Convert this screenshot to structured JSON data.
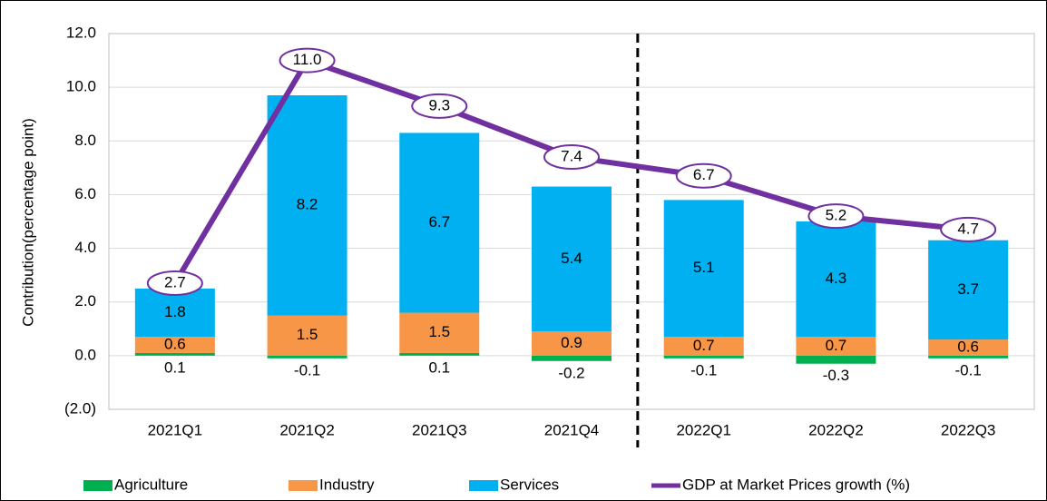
{
  "chart_data": {
    "type": "bar",
    "y_label": "Contribution(percentage  point)",
    "categories": [
      "2021Q1",
      "2021Q2",
      "2021Q3",
      "2021Q4",
      "2022Q1",
      "2022Q2",
      "2022Q3"
    ],
    "series": [
      {
        "name": "Agriculture",
        "type": "bar",
        "color": "#00b050",
        "values": [
          0.1,
          -0.1,
          0.1,
          -0.2,
          -0.1,
          -0.3,
          -0.1
        ]
      },
      {
        "name": "Industry",
        "type": "bar",
        "color": "#f79646",
        "values": [
          0.6,
          1.5,
          1.5,
          0.9,
          0.7,
          0.7,
          0.6
        ]
      },
      {
        "name": "Services",
        "type": "bar",
        "color": "#00b0f0",
        "values": [
          1.8,
          8.2,
          6.7,
          5.4,
          5.1,
          4.3,
          3.7
        ]
      },
      {
        "name": "GDP at Market Prices growth (%)",
        "type": "line",
        "color": "#7030a0",
        "values": [
          2.7,
          11,
          9.3,
          7.4,
          6.7,
          5.2,
          4.7
        ],
        "value_labels": [
          "2.7",
          "11.0",
          "9.3",
          "7.4",
          "6.7",
          "5.2",
          "4.7"
        ]
      }
    ],
    "ylim": [
      -2,
      12
    ],
    "yticks": [
      {
        "value": -2,
        "label": "(2.0)"
      },
      {
        "value": 0,
        "label": "0.0"
      },
      {
        "value": 2,
        "label": "2.0"
      },
      {
        "value": 4,
        "label": "4.0"
      },
      {
        "value": 6,
        "label": "6.0"
      },
      {
        "value": 8,
        "label": "8.0"
      },
      {
        "value": 10,
        "label": "10.0"
      },
      {
        "value": 12,
        "label": "12.0"
      }
    ],
    "grid": true,
    "legend": "bottom"
  }
}
